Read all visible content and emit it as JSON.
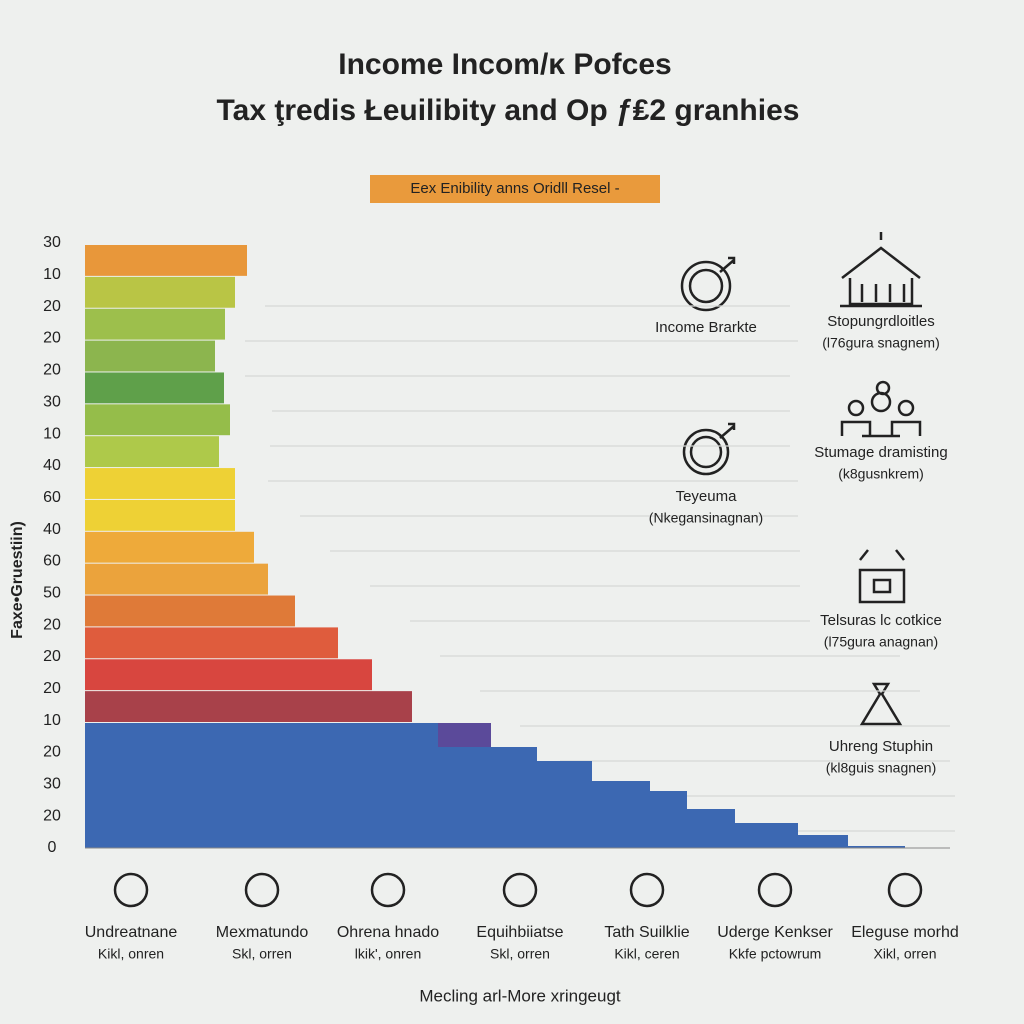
{
  "header": {
    "title_lines": [
      "Income Incom/ĸ Pofces",
      "Tax ţredis Łeuilibity and Op ƒ₤2 granhies"
    ],
    "badge": "Eex Enibility anns Oridll Resel -"
  },
  "axis": {
    "y_title": "Faxe•Gruestiin)",
    "y_labels": [
      "30",
      "10",
      "20",
      "20",
      "20",
      "30",
      "10",
      "40",
      "60",
      "40",
      "60",
      "50",
      "20",
      "20",
      "20",
      "10",
      "20",
      "30",
      "20",
      "0"
    ],
    "x_title": "Mecling arl-More xringeugt"
  },
  "side_items": [
    {
      "label": "Income Brarkte"
    },
    {
      "label": "Teyeuma",
      "note": "(Nkegansinagnan)"
    },
    {
      "label": "Stopungrdloitles",
      "note": "(l76gura snagnem)"
    },
    {
      "label": "Stumage dramisting",
      "note": "(k8gusnkrem)"
    },
    {
      "label": "Telsuras lc cotkice",
      "note": "(l75gura anagnan)"
    },
    {
      "label": "Uhreng Stuphin",
      "note": "(kl8guis snagnen)"
    }
  ],
  "bottom_items": [
    {
      "label": "Undreatnane",
      "note": "Kikl, onren"
    },
    {
      "label": "Mexmatundo",
      "note": "Skl, orren"
    },
    {
      "label": "Ohrena hnado",
      "note": "lkik', onren"
    },
    {
      "label": "Equihbiiatse",
      "note": "Skl, orren"
    },
    {
      "label": "Tath Suilklie",
      "note": "Kikl, ceren"
    },
    {
      "label": "Uderge Kenkser",
      "note": "Kkfe pctowrum"
    },
    {
      "label": "Eleguse morhd",
      "note": "Xikl, orren"
    }
  ]
}
